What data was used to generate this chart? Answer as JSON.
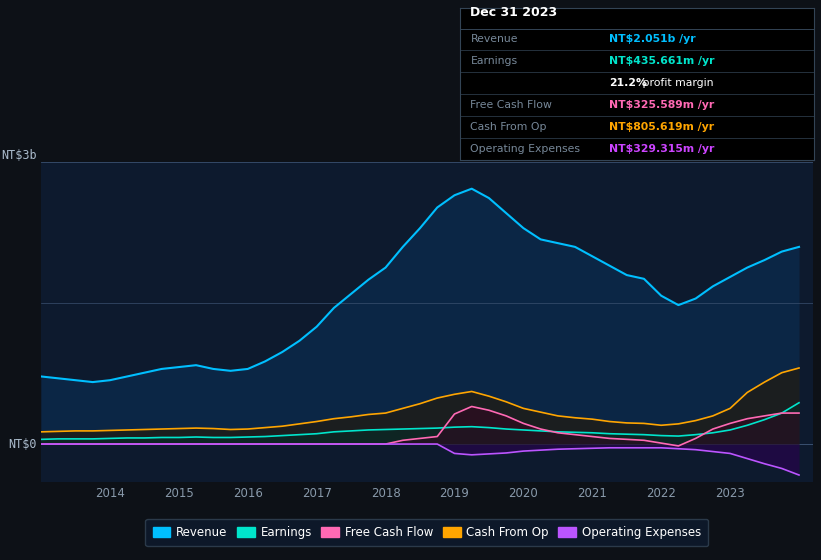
{
  "bg_color": "#0d1117",
  "chart_bg": "#0d1a2e",
  "legend": [
    {
      "label": "Revenue",
      "color": "#00bfff"
    },
    {
      "label": "Earnings",
      "color": "#00e5cc"
    },
    {
      "label": "Free Cash Flow",
      "color": "#ff69b4"
    },
    {
      "label": "Cash From Op",
      "color": "#ffa500"
    },
    {
      "label": "Operating Expenses",
      "color": "#bb55ff"
    }
  ],
  "infobox": {
    "title": "Dec 31 2023",
    "rows": [
      {
        "label": "Revenue",
        "value": "NT$2.051b /yr",
        "color": "#00bfff"
      },
      {
        "label": "Earnings",
        "value": "NT$435.661m /yr",
        "color": "#00e5cc"
      },
      {
        "label": "",
        "value": "21.2% profit margin",
        "color": "#ffffff",
        "bold_prefix": "21.2%"
      },
      {
        "label": "Free Cash Flow",
        "value": "NT$325.589m /yr",
        "color": "#ff69b4"
      },
      {
        "label": "Cash From Op",
        "value": "NT$805.619m /yr",
        "color": "#ffa500"
      },
      {
        "label": "Operating Expenses",
        "value": "NT$329.315m /yr",
        "color": "#cc44ff"
      }
    ]
  },
  "x": [
    2013.0,
    2013.25,
    2013.5,
    2013.75,
    2014.0,
    2014.25,
    2014.5,
    2014.75,
    2015.0,
    2015.25,
    2015.5,
    2015.75,
    2016.0,
    2016.25,
    2016.5,
    2016.75,
    2017.0,
    2017.25,
    2017.5,
    2017.75,
    2018.0,
    2018.25,
    2018.5,
    2018.75,
    2019.0,
    2019.25,
    2019.5,
    2019.75,
    2020.0,
    2020.25,
    2020.5,
    2020.75,
    2021.0,
    2021.25,
    2021.5,
    2021.75,
    2022.0,
    2022.25,
    2022.5,
    2022.75,
    2023.0,
    2023.25,
    2023.5,
    2023.75,
    2024.0
  ],
  "revenue": [
    0.72,
    0.7,
    0.68,
    0.66,
    0.68,
    0.72,
    0.76,
    0.8,
    0.82,
    0.84,
    0.8,
    0.78,
    0.8,
    0.88,
    0.98,
    1.1,
    1.25,
    1.45,
    1.6,
    1.75,
    1.88,
    2.1,
    2.3,
    2.52,
    2.65,
    2.72,
    2.62,
    2.46,
    2.3,
    2.18,
    2.14,
    2.1,
    2.0,
    1.9,
    1.8,
    1.76,
    1.58,
    1.48,
    1.55,
    1.68,
    1.78,
    1.88,
    1.96,
    2.05,
    2.1
  ],
  "earnings": [
    0.05,
    0.055,
    0.055,
    0.055,
    0.06,
    0.065,
    0.065,
    0.07,
    0.07,
    0.075,
    0.07,
    0.07,
    0.075,
    0.08,
    0.09,
    0.1,
    0.11,
    0.13,
    0.14,
    0.15,
    0.155,
    0.16,
    0.165,
    0.17,
    0.18,
    0.185,
    0.175,
    0.16,
    0.15,
    0.14,
    0.13,
    0.125,
    0.12,
    0.11,
    0.105,
    0.1,
    0.09,
    0.085,
    0.1,
    0.12,
    0.15,
    0.2,
    0.26,
    0.33,
    0.44
  ],
  "free_cash_flow": [
    0.0,
    0.0,
    0.0,
    0.0,
    0.0,
    0.0,
    0.0,
    0.0,
    0.0,
    0.0,
    0.0,
    0.0,
    0.0,
    0.0,
    0.0,
    0.0,
    0.0,
    0.0,
    0.0,
    0.0,
    0.0,
    0.04,
    0.06,
    0.08,
    0.32,
    0.4,
    0.36,
    0.3,
    0.22,
    0.16,
    0.12,
    0.1,
    0.08,
    0.06,
    0.05,
    0.04,
    0.01,
    -0.02,
    0.06,
    0.16,
    0.22,
    0.27,
    0.3,
    0.33,
    0.33
  ],
  "cash_from_op": [
    0.13,
    0.135,
    0.14,
    0.14,
    0.145,
    0.15,
    0.155,
    0.16,
    0.165,
    0.17,
    0.165,
    0.155,
    0.16,
    0.175,
    0.19,
    0.215,
    0.24,
    0.27,
    0.29,
    0.315,
    0.33,
    0.38,
    0.43,
    0.49,
    0.53,
    0.56,
    0.51,
    0.45,
    0.38,
    0.34,
    0.3,
    0.28,
    0.265,
    0.24,
    0.225,
    0.22,
    0.2,
    0.215,
    0.25,
    0.3,
    0.38,
    0.55,
    0.66,
    0.76,
    0.81
  ],
  "op_expenses": [
    0.0,
    0.0,
    0.0,
    0.0,
    0.0,
    0.0,
    0.0,
    0.0,
    0.0,
    0.0,
    0.0,
    0.0,
    0.0,
    0.0,
    0.0,
    0.0,
    0.0,
    0.0,
    0.0,
    0.0,
    0.0,
    0.0,
    0.0,
    0.0,
    -0.1,
    -0.115,
    -0.105,
    -0.095,
    -0.075,
    -0.065,
    -0.055,
    -0.05,
    -0.045,
    -0.04,
    -0.04,
    -0.04,
    -0.04,
    -0.05,
    -0.06,
    -0.08,
    -0.1,
    -0.155,
    -0.21,
    -0.26,
    -0.33
  ],
  "ylim": [
    -0.4,
    3.0
  ],
  "xlim": [
    2013.0,
    2024.2
  ],
  "xticks": [
    2014,
    2015,
    2016,
    2017,
    2018,
    2019,
    2020,
    2021,
    2022,
    2023
  ],
  "xtick_labels": [
    "2014",
    "2015",
    "2016",
    "2017",
    "2018",
    "2019",
    "2020",
    "2021",
    "2022",
    "2023"
  ],
  "y_top_label": "NT$3b",
  "y_zero_label": "NT$0"
}
